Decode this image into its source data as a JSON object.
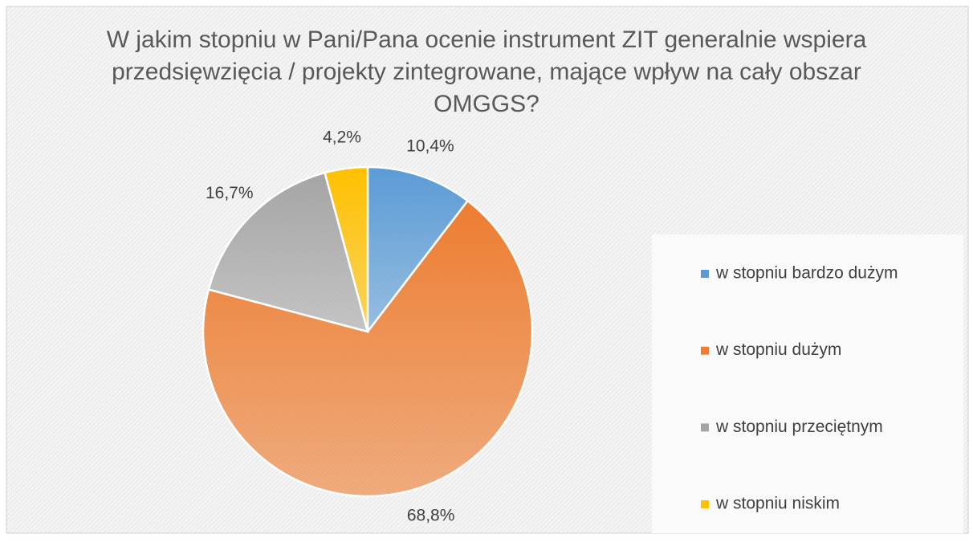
{
  "chart_data": {
    "type": "pie",
    "title": "W jakim stopniu w Pani/Pana ocenie instrument ZIT generalnie wspiera przedsięwzięcia / projekty zintegrowane, mające wpływ na cały obszar OMGGS?",
    "categories": [
      "w stopniu bardzo dużym",
      "w stopniu dużym",
      "w stopniu przeciętnym",
      "w stopniu niskim"
    ],
    "values": [
      10.4,
      68.8,
      16.7,
      4.2
    ],
    "value_labels": [
      "10,4%",
      "68,8%",
      "16,7%",
      "4,2%"
    ],
    "colors": [
      "#5b9bd5",
      "#ed7d31",
      "#a5a5a5",
      "#ffc000"
    ],
    "legend": "right"
  }
}
